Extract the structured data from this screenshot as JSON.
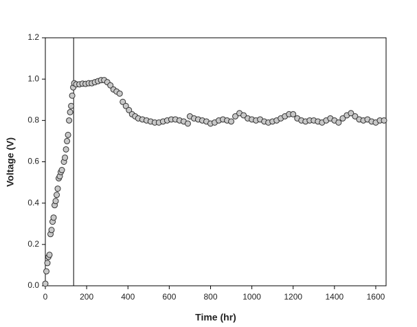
{
  "chart_data": {
    "type": "scatter",
    "x_label": "Time (hr)",
    "y_label": "Voltage (V)",
    "xlim": [
      0,
      1650
    ],
    "ylim": [
      0,
      1.2
    ],
    "xticks": [
      0,
      200,
      400,
      600,
      800,
      1000,
      1200,
      1400,
      1600
    ],
    "yticks": [
      {
        "value": 0,
        "label": "0.0"
      },
      0.2,
      0.4,
      0.6,
      0.8,
      {
        "value": 1,
        "label": "1.0"
      },
      1.2
    ],
    "vline_x": 137,
    "marker_color": "#c8c8c8",
    "x": [
      0,
      5,
      10,
      15,
      20,
      25,
      30,
      35,
      40,
      45,
      50,
      55,
      60,
      65,
      70,
      75,
      80,
      90,
      95,
      100,
      105,
      110,
      115,
      120,
      125,
      130,
      135,
      140,
      150,
      165,
      180,
      195,
      210,
      225,
      240,
      255,
      270,
      285,
      300,
      315,
      330,
      345,
      360,
      375,
      390,
      405,
      420,
      435,
      450,
      470,
      490,
      510,
      530,
      550,
      570,
      590,
      610,
      630,
      650,
      670,
      690,
      700,
      720,
      740,
      760,
      780,
      800,
      820,
      840,
      860,
      880,
      900,
      920,
      940,
      960,
      980,
      1000,
      1020,
      1040,
      1060,
      1080,
      1100,
      1120,
      1140,
      1160,
      1180,
      1200,
      1220,
      1240,
      1260,
      1280,
      1300,
      1320,
      1340,
      1360,
      1380,
      1400,
      1420,
      1440,
      1460,
      1480,
      1500,
      1520,
      1540,
      1560,
      1580,
      1600,
      1620,
      1640
    ],
    "y": [
      0.01,
      0.07,
      0.11,
      0.14,
      0.15,
      0.25,
      0.27,
      0.31,
      0.33,
      0.39,
      0.41,
      0.44,
      0.47,
      0.52,
      0.53,
      0.55,
      0.56,
      0.6,
      0.62,
      0.66,
      0.7,
      0.73,
      0.8,
      0.84,
      0.87,
      0.92,
      0.96,
      0.98,
      0.975,
      0.975,
      0.978,
      0.977,
      0.98,
      0.98,
      0.985,
      0.99,
      0.995,
      0.995,
      0.985,
      0.97,
      0.95,
      0.94,
      0.93,
      0.89,
      0.87,
      0.85,
      0.83,
      0.82,
      0.81,
      0.805,
      0.8,
      0.795,
      0.79,
      0.79,
      0.795,
      0.8,
      0.805,
      0.805,
      0.8,
      0.795,
      0.785,
      0.82,
      0.81,
      0.805,
      0.8,
      0.795,
      0.785,
      0.79,
      0.8,
      0.805,
      0.8,
      0.795,
      0.82,
      0.835,
      0.825,
      0.81,
      0.805,
      0.8,
      0.805,
      0.795,
      0.79,
      0.795,
      0.8,
      0.81,
      0.82,
      0.83,
      0.83,
      0.81,
      0.8,
      0.795,
      0.8,
      0.8,
      0.795,
      0.79,
      0.8,
      0.81,
      0.8,
      0.79,
      0.81,
      0.825,
      0.835,
      0.82,
      0.805,
      0.8,
      0.805,
      0.795,
      0.79,
      0.8,
      0.8
    ]
  }
}
